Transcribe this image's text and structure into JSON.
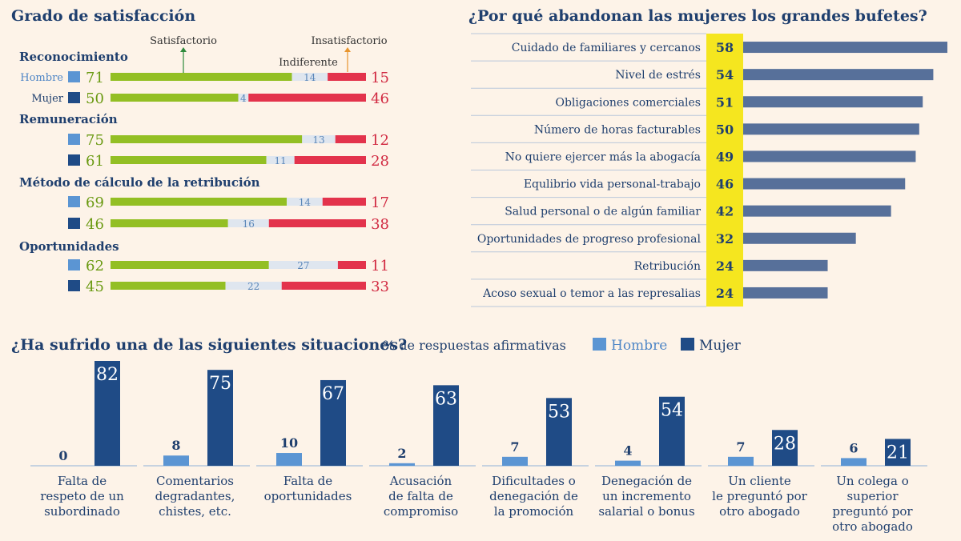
{
  "colors": {
    "background": "#fdf3e8",
    "satisfied": "#93bf24",
    "indifferent": "#dfe6ef",
    "unsatisfied": "#e3334c",
    "hombre": "#5b95d3",
    "mujer": "#1f4b86",
    "reason_bar": "#57709a",
    "highlight": "#f5e61f"
  },
  "chart_data": [
    {
      "type": "bar",
      "subtype": "stacked-horizontal",
      "title": "Grado de satisfacción",
      "legend": {
        "satisfied": "Satisfactorio",
        "indifferent": "Indiferente",
        "unsatisfied": "Insatisfactorio"
      },
      "groups": [
        {
          "label": "Reconocimiento",
          "rows": [
            {
              "gender_label": "Hombre",
              "gender": "hombre",
              "satisfied": 71,
              "indifferent": 14,
              "unsatisfied": 15
            },
            {
              "gender_label": "Mujer",
              "gender": "mujer",
              "satisfied": 50,
              "indifferent": 4,
              "unsatisfied": 46
            }
          ]
        },
        {
          "label": "Remuneración",
          "rows": [
            {
              "gender_label": "",
              "gender": "hombre",
              "satisfied": 75,
              "indifferent": 13,
              "unsatisfied": 12
            },
            {
              "gender_label": "",
              "gender": "mujer",
              "satisfied": 61,
              "indifferent": 11,
              "unsatisfied": 28
            }
          ]
        },
        {
          "label": "Método de cálculo de la retribución",
          "rows": [
            {
              "gender_label": "",
              "gender": "hombre",
              "satisfied": 69,
              "indifferent": 14,
              "unsatisfied": 17
            },
            {
              "gender_label": "",
              "gender": "mujer",
              "satisfied": 46,
              "indifferent": 16,
              "unsatisfied": 38
            }
          ]
        },
        {
          "label": "Oportunidades",
          "rows": [
            {
              "gender_label": "",
              "gender": "hombre",
              "satisfied": 62,
              "indifferent": 27,
              "unsatisfied": 11
            },
            {
              "gender_label": "",
              "gender": "mujer",
              "satisfied": 45,
              "indifferent": 22,
              "unsatisfied": 33
            }
          ]
        }
      ]
    },
    {
      "type": "bar",
      "subtype": "horizontal",
      "title": "¿Por qué abandonan las mujeres los grandes bufetes?",
      "xlim": [
        0,
        58
      ],
      "categories": [
        "Cuidado de familiares y cercanos",
        "Nivel de estrés",
        "Obligaciones comerciales",
        "Número de horas facturables",
        "No quiere ejercer más la abogacía",
        "Equlibrio vida personal-trabajo",
        "Salud personal o de algún familiar",
        "Oportunidades de progreso profesional",
        "Retribución",
        "Acoso sexual o temor a las represalias"
      ],
      "values": [
        58,
        54,
        51,
        50,
        49,
        46,
        42,
        32,
        24,
        24
      ]
    },
    {
      "type": "bar",
      "subtype": "grouped-vertical",
      "title": "¿Ha sufrido una de las siguientes situaciones?",
      "subtitle": "% de respuestas afirmativas",
      "ylim": [
        0,
        82
      ],
      "categories": [
        [
          "Falta de",
          "respeto de un",
          "subordinado"
        ],
        [
          "Comentarios",
          "degradantes,",
          "chistes, etc."
        ],
        [
          "Falta de",
          "oportunidades"
        ],
        [
          "Acusación",
          "de falta de",
          "compromiso"
        ],
        [
          "Dificultades o",
          "denegación de",
          "la promoción"
        ],
        [
          "Denegación de",
          "un incremento",
          "salarial o bonus"
        ],
        [
          "Un cliente",
          "le preguntó por",
          "otro abogado"
        ],
        [
          "Un colega o",
          "superior",
          "preguntó por",
          "otro abogado"
        ]
      ],
      "series": [
        {
          "name": "Hombre",
          "key": "hombre",
          "values": [
            0,
            8,
            10,
            2,
            7,
            4,
            7,
            6
          ]
        },
        {
          "name": "Mujer",
          "key": "mujer",
          "values": [
            82,
            75,
            67,
            63,
            53,
            54,
            28,
            21
          ]
        }
      ]
    }
  ]
}
